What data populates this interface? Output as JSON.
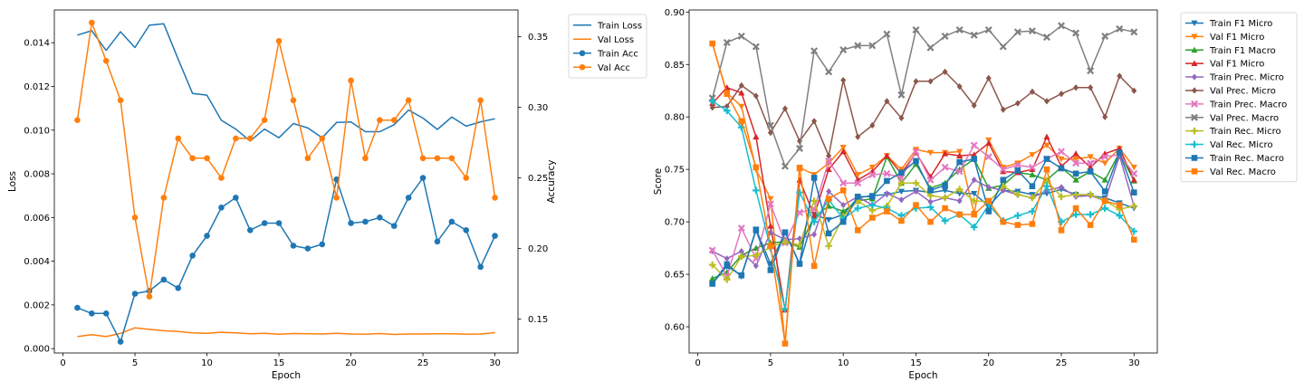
{
  "chart_data": [
    {
      "type": "line",
      "xlabel": "Epoch",
      "ylabel": "Loss",
      "y2label": "Accuracy",
      "xlim": [
        -0.6,
        31.6
      ],
      "ylim": [
        -0.0002,
        0.0155
      ],
      "y2lim": [
        0.126,
        0.369
      ],
      "x_ticks": [
        0,
        5,
        10,
        15,
        20,
        25,
        30
      ],
      "y_ticks": [
        0.0,
        0.002,
        0.004,
        0.006,
        0.008,
        0.01,
        0.012,
        0.014
      ],
      "y_tick_labels": [
        "0.000",
        "0.002",
        "0.004",
        "0.006",
        "0.008",
        "0.010",
        "0.012",
        "0.014"
      ],
      "y2_ticks": [
        0.15,
        0.2,
        0.25,
        0.3,
        0.35
      ],
      "y2_tick_labels": [
        "0.15",
        "0.20",
        "0.25",
        "0.30",
        "0.35"
      ],
      "legend_position": "outside-right-top",
      "x": [
        1,
        2,
        3,
        4,
        5,
        6,
        7,
        8,
        9,
        10,
        11,
        12,
        13,
        14,
        15,
        16,
        17,
        18,
        19,
        20,
        21,
        22,
        23,
        24,
        25,
        26,
        27,
        28,
        29,
        30
      ],
      "series": [
        {
          "name": "Train Loss",
          "axis": "left",
          "color": "#1f77b4",
          "marker": "none",
          "values": [
            0.01435,
            0.01455,
            0.01365,
            0.0145,
            0.01378,
            0.0148,
            0.01487,
            0.01325,
            0.01168,
            0.0116,
            0.01045,
            0.01005,
            0.0095,
            0.01005,
            0.00965,
            0.0103,
            0.0101,
            0.00965,
            0.01035,
            0.01037,
            0.00993,
            0.00993,
            0.01025,
            0.01092,
            0.01055,
            0.01003,
            0.0106,
            0.01018,
            0.01038,
            0.01052
          ]
        },
        {
          "name": "Val Loss",
          "axis": "left",
          "color": "#ff7f0e",
          "marker": "none",
          "values": [
            0.00055,
            0.00064,
            0.00055,
            0.0007,
            0.00095,
            0.00088,
            0.00082,
            0.00078,
            0.00072,
            0.0007,
            0.00075,
            0.00072,
            0.00068,
            0.0007,
            0.00066,
            0.00069,
            0.00068,
            0.00067,
            0.0007,
            0.00067,
            0.00066,
            0.00069,
            0.00065,
            0.00067,
            0.00067,
            0.00068,
            0.00068,
            0.00066,
            0.00067,
            0.00073
          ]
        },
        {
          "name": "Train Acc",
          "axis": "right",
          "color": "#1f77b4",
          "marker": "circle",
          "values": [
            0.158,
            0.154,
            0.154,
            0.134,
            0.168,
            0.17,
            0.178,
            0.172,
            0.195,
            0.209,
            0.229,
            0.236,
            0.213,
            0.218,
            0.218,
            0.202,
            0.2,
            0.203,
            0.249,
            0.218,
            0.219,
            0.222,
            0.216,
            0.236,
            0.25,
            0.205,
            0.219,
            0.213,
            0.187,
            0.209
          ]
        },
        {
          "name": "Val Acc",
          "axis": "right",
          "color": "#ff7f0e",
          "marker": "circle",
          "values": [
            0.291,
            0.36,
            0.333,
            0.305,
            0.222,
            0.166,
            0.236,
            0.278,
            0.264,
            0.264,
            0.25,
            0.278,
            0.278,
            0.291,
            0.347,
            0.305,
            0.264,
            0.278,
            0.236,
            0.319,
            0.264,
            0.291,
            0.291,
            0.305,
            0.264,
            0.264,
            0.264,
            0.25,
            0.305,
            0.236
          ]
        }
      ]
    },
    {
      "type": "line",
      "xlabel": "Epoch",
      "ylabel": "Score",
      "xlim": [
        -0.6,
        31.6
      ],
      "ylim": [
        0.575,
        0.902
      ],
      "x_ticks": [
        0,
        5,
        10,
        15,
        20,
        25,
        30
      ],
      "y_ticks": [
        0.6,
        0.65,
        0.7,
        0.75,
        0.8,
        0.85,
        0.9
      ],
      "y_tick_labels": [
        "0.60",
        "0.65",
        "0.70",
        "0.75",
        "0.80",
        "0.85",
        "0.90"
      ],
      "legend_position": "outside-right-top",
      "x": [
        1,
        2,
        3,
        4,
        5,
        6,
        7,
        8,
        9,
        10,
        11,
        12,
        13,
        14,
        15,
        16,
        17,
        18,
        19,
        20,
        21,
        22,
        23,
        24,
        25,
        26,
        27,
        28,
        29,
        30
      ],
      "series": [
        {
          "name": "Train F1 Micro",
          "color": "#1f77b4",
          "marker": "tri-down",
          "values": [
            0.641,
            0.66,
            0.648,
            0.693,
            0.66,
            0.69,
            0.66,
            0.707,
            0.702,
            0.707,
            0.723,
            0.725,
            0.726,
            0.729,
            0.73,
            0.728,
            0.73,
            0.727,
            0.727,
            0.715,
            0.73,
            0.729,
            0.726,
            0.727,
            0.731,
            0.726,
            0.725,
            0.723,
            0.718,
            0.713
          ]
        },
        {
          "name": "Val F1 Micro",
          "color": "#ff7f0e",
          "marker": "tri-down",
          "values": [
            0.87,
            0.823,
            0.81,
            0.75,
            0.722,
            0.584,
            0.752,
            0.745,
            0.756,
            0.771,
            0.745,
            0.752,
            0.763,
            0.75,
            0.769,
            0.766,
            0.766,
            0.767,
            0.708,
            0.778,
            0.752,
            0.756,
            0.764,
            0.773,
            0.76,
            0.76,
            0.762,
            0.756,
            0.77,
            0.752
          ]
        },
        {
          "name": "Train F1 Macro",
          "color": "#2ca02c",
          "marker": "tri-up",
          "values": [
            0.646,
            0.652,
            0.668,
            0.675,
            0.68,
            0.681,
            0.676,
            0.705,
            0.715,
            0.71,
            0.72,
            0.722,
            0.762,
            0.737,
            0.755,
            0.732,
            0.737,
            0.75,
            0.76,
            0.732,
            0.735,
            0.747,
            0.745,
            0.74,
            0.752,
            0.74,
            0.748,
            0.74,
            0.766,
            0.739
          ]
        },
        {
          "name": "Val F1 Micro",
          "color": "#d62728",
          "marker": "tri-up",
          "values": [
            0.813,
            0.828,
            0.823,
            0.781,
            0.696,
            0.616,
            0.74,
            0.706,
            0.75,
            0.767,
            0.74,
            0.748,
            0.763,
            0.746,
            0.766,
            0.743,
            0.765,
            0.763,
            0.764,
            0.775,
            0.748,
            0.747,
            0.75,
            0.781,
            0.753,
            0.765,
            0.752,
            0.765,
            0.77,
            0.74
          ]
        },
        {
          "name": "Train Prec. Micro",
          "color": "#9467bd",
          "marker": "diamond",
          "values": [
            0.672,
            0.665,
            0.672,
            0.658,
            0.69,
            0.683,
            0.684,
            0.688,
            0.729,
            0.716,
            0.724,
            0.716,
            0.727,
            0.721,
            0.729,
            0.719,
            0.723,
            0.72,
            0.74,
            0.733,
            0.73,
            0.726,
            0.723,
            0.73,
            0.733,
            0.724,
            0.725,
            0.72,
            0.763,
            0.715
          ]
        },
        {
          "name": "Val Prec. Micro",
          "color": "#8c564b",
          "marker": "diamond",
          "values": [
            0.809,
            0.81,
            0.83,
            0.82,
            0.785,
            0.808,
            0.777,
            0.796,
            0.763,
            0.835,
            0.781,
            0.792,
            0.815,
            0.799,
            0.834,
            0.834,
            0.843,
            0.829,
            0.811,
            0.837,
            0.807,
            0.813,
            0.824,
            0.815,
            0.822,
            0.828,
            0.828,
            0.8,
            0.839,
            0.825
          ]
        },
        {
          "name": "Train Prec. Macro",
          "color": "#e377c2",
          "marker": "x",
          "values": [
            0.673,
            0.648,
            0.694,
            0.665,
            0.717,
            0.68,
            0.709,
            0.712,
            0.758,
            0.737,
            0.737,
            0.745,
            0.746,
            0.742,
            0.767,
            0.74,
            0.752,
            0.748,
            0.773,
            0.762,
            0.75,
            0.754,
            0.752,
            0.76,
            0.767,
            0.756,
            0.756,
            0.762,
            0.764,
            0.746
          ]
        },
        {
          "name": "Val Prec. Macro",
          "color": "#7f7f7f",
          "marker": "x",
          "values": [
            0.818,
            0.871,
            0.877,
            0.867,
            0.792,
            0.753,
            0.77,
            0.863,
            0.843,
            0.864,
            0.868,
            0.868,
            0.879,
            0.821,
            0.883,
            0.866,
            0.877,
            0.883,
            0.878,
            0.883,
            0.867,
            0.881,
            0.882,
            0.876,
            0.887,
            0.88,
            0.844,
            0.877,
            0.884,
            0.881
          ]
        },
        {
          "name": "Train Rec. Micro",
          "color": "#bcbd22",
          "marker": "plus",
          "values": [
            0.659,
            0.645,
            0.667,
            0.668,
            0.676,
            0.681,
            0.678,
            0.72,
            0.677,
            0.705,
            0.72,
            0.711,
            0.715,
            0.737,
            0.737,
            0.725,
            0.723,
            0.731,
            0.72,
            0.719,
            0.734,
            0.726,
            0.723,
            0.739,
            0.724,
            0.726,
            0.726,
            0.72,
            0.712,
            0.715
          ]
        },
        {
          "name": "Val Rec. Micro",
          "color": "#17becf",
          "marker": "plus",
          "values": [
            0.815,
            0.806,
            0.79,
            0.73,
            0.675,
            0.617,
            0.728,
            0.7,
            0.721,
            0.703,
            0.713,
            0.716,
            0.713,
            0.706,
            0.713,
            0.714,
            0.701,
            0.707,
            0.695,
            0.716,
            0.701,
            0.706,
            0.71,
            0.734,
            0.7,
            0.707,
            0.707,
            0.713,
            0.706,
            0.691
          ]
        },
        {
          "name": "Train Rec. Macro",
          "color": "#1f77b4",
          "marker": "square",
          "values": [
            0.641,
            0.658,
            0.649,
            0.692,
            0.654,
            0.69,
            0.66,
            0.742,
            0.689,
            0.7,
            0.724,
            0.724,
            0.739,
            0.747,
            0.758,
            0.73,
            0.735,
            0.757,
            0.76,
            0.71,
            0.74,
            0.749,
            0.734,
            0.76,
            0.751,
            0.746,
            0.748,
            0.729,
            0.766,
            0.728
          ]
        },
        {
          "name": "Val Rec. Macro",
          "color": "#ff7f0e",
          "marker": "square",
          "values": [
            0.87,
            0.822,
            0.796,
            0.752,
            0.677,
            0.584,
            0.751,
            0.658,
            0.722,
            0.73,
            0.692,
            0.704,
            0.71,
            0.701,
            0.716,
            0.7,
            0.713,
            0.707,
            0.707,
            0.72,
            0.7,
            0.697,
            0.698,
            0.75,
            0.692,
            0.713,
            0.697,
            0.72,
            0.716,
            0.683
          ]
        }
      ]
    }
  ]
}
